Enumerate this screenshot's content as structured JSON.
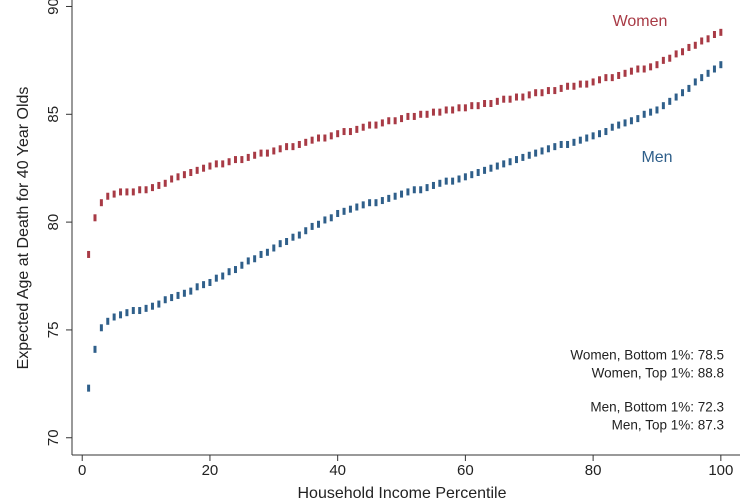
{
  "chart_data": {
    "type": "scatter",
    "y_label": "Expected Age at Death for 40 Year Olds",
    "x_label": "Household Income Percentile",
    "x": [
      1,
      2,
      3,
      4,
      5,
      6,
      7,
      8,
      9,
      10,
      11,
      12,
      13,
      14,
      15,
      16,
      17,
      18,
      19,
      20,
      21,
      22,
      23,
      24,
      25,
      26,
      27,
      28,
      29,
      30,
      31,
      32,
      33,
      34,
      35,
      36,
      37,
      38,
      39,
      40,
      41,
      42,
      43,
      44,
      45,
      46,
      47,
      48,
      49,
      50,
      51,
      52,
      53,
      54,
      55,
      56,
      57,
      58,
      59,
      60,
      61,
      62,
      63,
      64,
      65,
      66,
      67,
      68,
      69,
      70,
      71,
      72,
      73,
      74,
      75,
      76,
      77,
      78,
      79,
      80,
      81,
      82,
      83,
      84,
      85,
      86,
      87,
      88,
      89,
      90,
      91,
      92,
      93,
      94,
      95,
      96,
      97,
      98,
      99,
      100
    ],
    "series": [
      {
        "name": "Women",
        "color": "#a83a45",
        "values": [
          78.5,
          80.2,
          80.9,
          81.2,
          81.3,
          81.4,
          81.4,
          81.4,
          81.5,
          81.5,
          81.6,
          81.7,
          81.8,
          82.0,
          82.1,
          82.2,
          82.3,
          82.4,
          82.5,
          82.6,
          82.7,
          82.7,
          82.8,
          82.9,
          82.9,
          83.0,
          83.1,
          83.2,
          83.2,
          83.3,
          83.4,
          83.5,
          83.5,
          83.6,
          83.7,
          83.8,
          83.9,
          83.9,
          84.0,
          84.1,
          84.2,
          84.2,
          84.3,
          84.4,
          84.5,
          84.5,
          84.6,
          84.7,
          84.7,
          84.8,
          84.9,
          84.9,
          85.0,
          85.0,
          85.1,
          85.1,
          85.2,
          85.2,
          85.3,
          85.3,
          85.4,
          85.4,
          85.5,
          85.5,
          85.6,
          85.7,
          85.7,
          85.8,
          85.8,
          85.9,
          86.0,
          86.0,
          86.1,
          86.1,
          86.2,
          86.3,
          86.3,
          86.4,
          86.4,
          86.5,
          86.6,
          86.7,
          86.7,
          86.8,
          86.9,
          87.0,
          87.1,
          87.1,
          87.2,
          87.3,
          87.5,
          87.6,
          87.8,
          87.9,
          88.1,
          88.2,
          88.4,
          88.5,
          88.7,
          88.8
        ]
      },
      {
        "name": "Men",
        "color": "#2f5f8a",
        "values": [
          72.3,
          74.1,
          75.1,
          75.4,
          75.6,
          75.7,
          75.8,
          75.9,
          75.9,
          76.0,
          76.1,
          76.2,
          76.4,
          76.5,
          76.6,
          76.7,
          76.8,
          77.0,
          77.1,
          77.2,
          77.4,
          77.5,
          77.7,
          77.8,
          78.0,
          78.2,
          78.3,
          78.5,
          78.6,
          78.8,
          79.0,
          79.1,
          79.3,
          79.4,
          79.6,
          79.8,
          79.9,
          80.1,
          80.2,
          80.4,
          80.5,
          80.6,
          80.7,
          80.8,
          80.9,
          80.9,
          81.0,
          81.1,
          81.2,
          81.3,
          81.4,
          81.5,
          81.5,
          81.6,
          81.7,
          81.8,
          81.9,
          81.9,
          82.0,
          82.1,
          82.2,
          82.3,
          82.4,
          82.5,
          82.6,
          82.7,
          82.8,
          82.9,
          83.0,
          83.1,
          83.2,
          83.3,
          83.4,
          83.5,
          83.6,
          83.6,
          83.7,
          83.8,
          83.9,
          84.0,
          84.1,
          84.2,
          84.4,
          84.5,
          84.6,
          84.7,
          84.8,
          85.0,
          85.1,
          85.2,
          85.4,
          85.6,
          85.8,
          86.0,
          86.2,
          86.5,
          86.7,
          86.9,
          87.1,
          87.3
        ]
      }
    ],
    "annotations": [
      "Women, Bottom 1%: 78.5",
      "Women, Top 1%: 88.8",
      "Men, Bottom 1%: 72.3",
      "Men, Top 1%: 87.3"
    ],
    "xlim": [
      -1.6,
      103
    ],
    "ylim": [
      69.2,
      90.3
    ],
    "xticks": [
      0,
      20,
      40,
      60,
      80,
      100
    ],
    "yticks": [
      70,
      75,
      80,
      85,
      90
    ]
  }
}
